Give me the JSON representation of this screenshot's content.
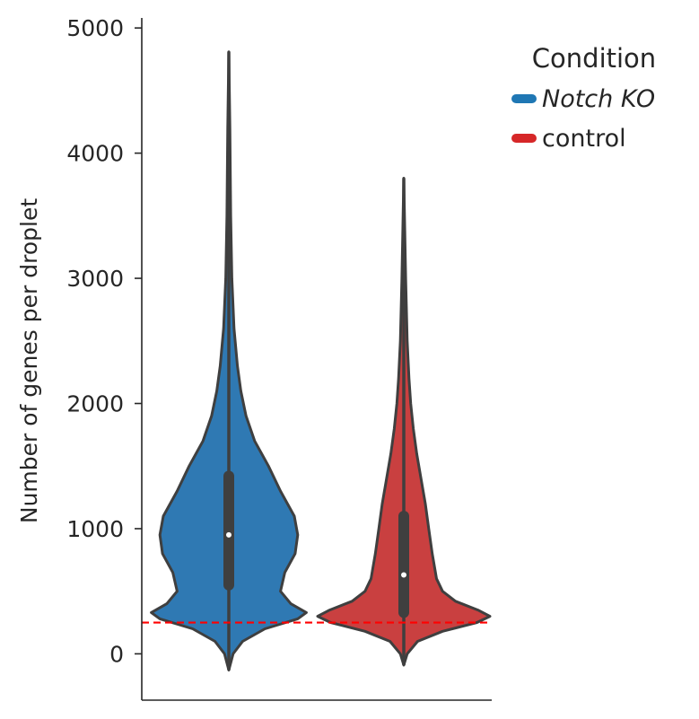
{
  "chart_data": {
    "type": "violin",
    "title": "",
    "xlabel": "",
    "ylabel": "Number of genes per droplet",
    "ylim": [
      -370,
      5080
    ],
    "yticks": [
      0,
      1000,
      2000,
      3000,
      4000,
      5000
    ],
    "ytick_labels": [
      "0",
      "1000",
      "2000",
      "3000",
      "4000",
      "5000"
    ],
    "grid": false,
    "threshold_line": {
      "value": 250,
      "color": "#ff0000",
      "style": "dashed"
    },
    "legend": {
      "title": "Condition",
      "placement": "top-right, outside plot",
      "entries": [
        {
          "label": "Notch KO",
          "color": "#1f77b4",
          "italic": true
        },
        {
          "label": "control",
          "color": "#d62728",
          "italic": false
        }
      ]
    },
    "series": [
      {
        "name": "Notch KO",
        "color": "#2f79b3",
        "min": -130,
        "max": 4810,
        "q1": 550,
        "median": 950,
        "q3": 1420,
        "density_profile": [
          [
            -130,
            0.0
          ],
          [
            0,
            0.05
          ],
          [
            100,
            0.16
          ],
          [
            200,
            0.42
          ],
          [
            280,
            0.8
          ],
          [
            330,
            0.9
          ],
          [
            400,
            0.72
          ],
          [
            500,
            0.6
          ],
          [
            650,
            0.65
          ],
          [
            800,
            0.77
          ],
          [
            950,
            0.8
          ],
          [
            1100,
            0.76
          ],
          [
            1300,
            0.6
          ],
          [
            1500,
            0.46
          ],
          [
            1700,
            0.3
          ],
          [
            1900,
            0.2
          ],
          [
            2100,
            0.14
          ],
          [
            2300,
            0.1
          ],
          [
            2600,
            0.06
          ],
          [
            3000,
            0.035
          ],
          [
            3500,
            0.022
          ],
          [
            4200,
            0.012
          ],
          [
            4810,
            0.0
          ]
        ]
      },
      {
        "name": "control",
        "color": "#c94040",
        "min": -90,
        "max": 3800,
        "q1": 330,
        "median": 630,
        "q3": 1100,
        "density_profile": [
          [
            -90,
            0.0
          ],
          [
            0,
            0.04
          ],
          [
            100,
            0.16
          ],
          [
            180,
            0.45
          ],
          [
            250,
            0.85
          ],
          [
            300,
            1.0
          ],
          [
            350,
            0.86
          ],
          [
            420,
            0.6
          ],
          [
            500,
            0.45
          ],
          [
            600,
            0.38
          ],
          [
            800,
            0.33
          ],
          [
            1000,
            0.29
          ],
          [
            1200,
            0.25
          ],
          [
            1400,
            0.2
          ],
          [
            1600,
            0.15
          ],
          [
            1800,
            0.11
          ],
          [
            2000,
            0.08
          ],
          [
            2200,
            0.06
          ],
          [
            2500,
            0.04
          ],
          [
            3000,
            0.022
          ],
          [
            3800,
            0.0
          ]
        ]
      }
    ]
  }
}
